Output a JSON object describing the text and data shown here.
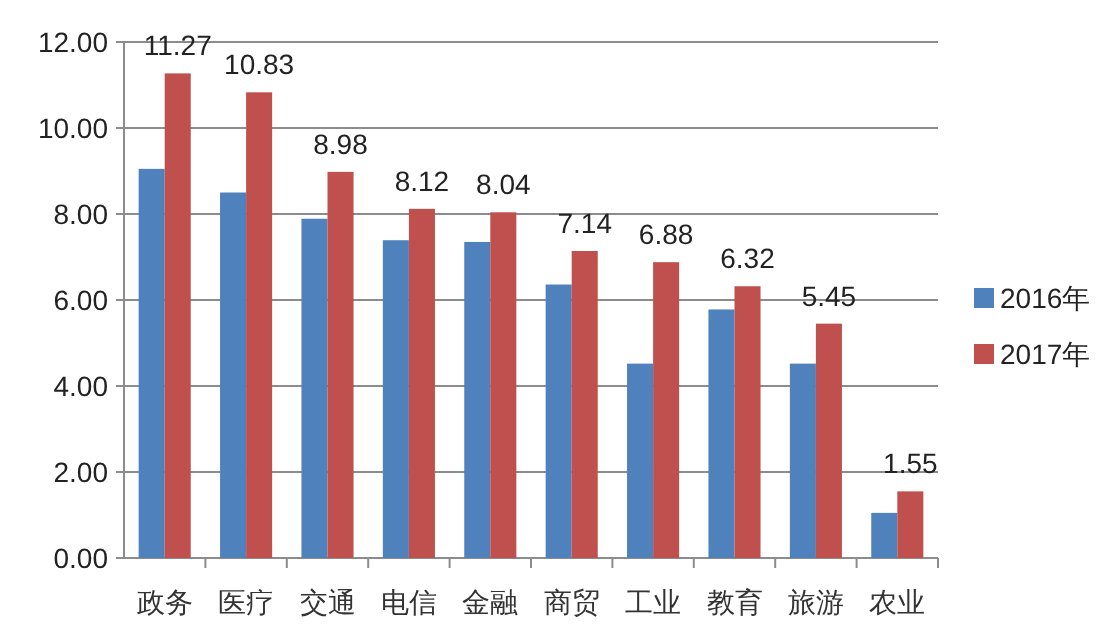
{
  "chart_data": {
    "type": "bar",
    "categories": [
      "政务",
      "医疗",
      "交通",
      "电信",
      "金融",
      "商贸",
      "工业",
      "教育",
      "旅游",
      "农业"
    ],
    "series": [
      {
        "name": "2016年",
        "color": "#4f81bd",
        "values": [
          9.05,
          8.5,
          7.89,
          7.39,
          7.35,
          6.36,
          4.52,
          5.78,
          4.52,
          1.05
        ]
      },
      {
        "name": "2017年",
        "color": "#c0504d",
        "values": [
          11.27,
          10.83,
          8.98,
          8.12,
          8.04,
          7.14,
          6.88,
          6.32,
          5.45,
          1.55
        ],
        "value_labels": [
          "11.27",
          "10.83",
          "8.98",
          "8.12",
          "8.04",
          "7.14",
          "6.88",
          "6.32",
          "5.45",
          "1.55"
        ]
      }
    ],
    "ylim": [
      0,
      12
    ],
    "yticks": [
      "0.00",
      "2.00",
      "4.00",
      "6.00",
      "8.00",
      "10.00",
      "12.00"
    ],
    "grid": "y",
    "legend": "right"
  }
}
